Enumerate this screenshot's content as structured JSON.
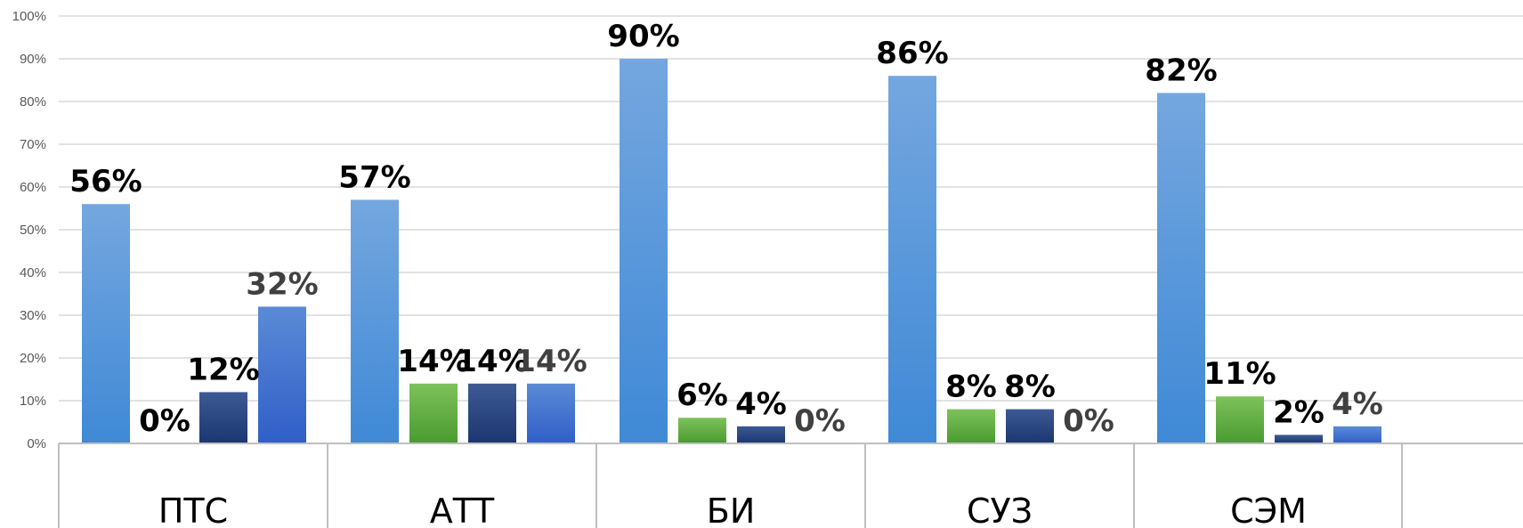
{
  "chart_data": {
    "type": "bar",
    "categories": [
      "ПТС",
      "АТТ",
      "БИ",
      "СУЗ",
      "СЭМ"
    ],
    "series": [
      {
        "values": [
          56,
          57,
          90,
          86,
          82
        ],
        "label_color": "#000000",
        "color_top": "#74a7df",
        "color_bottom": "#3f89d6"
      },
      {
        "values": [
          0,
          14,
          6,
          8,
          11
        ],
        "label_color": "#000000",
        "color_top": "#7dc25a",
        "color_bottom": "#4a9a30"
      },
      {
        "values": [
          12,
          14,
          4,
          8,
          2
        ],
        "label_color": "#000000",
        "color_top": "#3c5a94",
        "color_bottom": "#1b3670"
      },
      {
        "values": [
          32,
          14,
          0,
          0,
          4
        ],
        "label_color": "#404040",
        "color_top": "#5b8ad6",
        "color_bottom": "#2f5fc8"
      }
    ],
    "data_labels": [
      [
        "56%",
        "57%",
        "90%",
        "86%",
        "82%"
      ],
      [
        "0%",
        "14%",
        "6%",
        "8%",
        "11%"
      ],
      [
        "12%",
        "14%",
        "4%",
        "8%",
        "2%"
      ],
      [
        "32%",
        "14%",
        "0%",
        "0%",
        "4%"
      ]
    ],
    "ylim": [
      0,
      100
    ],
    "yticks": [
      "0%",
      "10%",
      "20%",
      "30%",
      "40%",
      "50%",
      "60%",
      "70%",
      "80%",
      "90%",
      "100%"
    ],
    "grid": true,
    "gridline_color": "#d9d9d9"
  }
}
